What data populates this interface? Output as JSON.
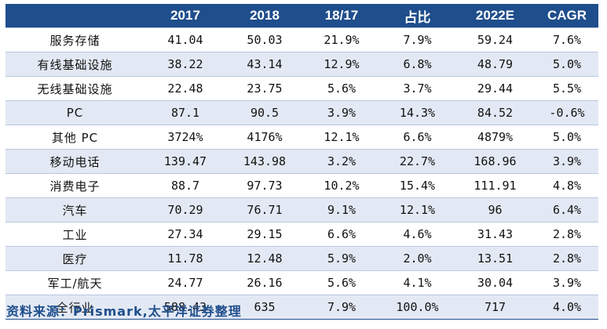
{
  "table": {
    "headers": [
      "",
      "2017",
      "2018",
      "18/17",
      "占比",
      "2022E",
      "CAGR"
    ],
    "rows": [
      [
        "服务存储",
        "41.04",
        "50.03",
        "21.9%",
        "7.9%",
        "59.24",
        "7.6%"
      ],
      [
        "有线基础设施",
        "38.22",
        "43.14",
        "12.9%",
        "6.8%",
        "48.79",
        "5.0%"
      ],
      [
        "无线基础设施",
        "22.48",
        "23.75",
        "5.6%",
        "3.7%",
        "29.44",
        "5.5%"
      ],
      [
        "PC",
        "87.1",
        "90.5",
        "3.9%",
        "14.3%",
        "84.52",
        "-0.6%"
      ],
      [
        "其他 PC",
        "3724%",
        "4176%",
        "12.1%",
        "6.6%",
        "4879%",
        "5.0%"
      ],
      [
        "移动电话",
        "139.47",
        "143.98",
        "3.2%",
        "22.7%",
        "168.96",
        "3.9%"
      ],
      [
        "消费电子",
        "88.7",
        "97.73",
        "10.2%",
        "15.4%",
        "111.91",
        "4.8%"
      ],
      [
        "汽车",
        "70.29",
        "76.71",
        "9.1%",
        "12.1%",
        "96",
        "6.4%"
      ],
      [
        "工业",
        "27.34",
        "29.15",
        "6.6%",
        "4.6%",
        "31.43",
        "2.8%"
      ],
      [
        "医疗",
        "11.78",
        "12.48",
        "5.9%",
        "2.0%",
        "13.51",
        "2.8%"
      ],
      [
        "军工/航天",
        "24.77",
        "26.16",
        "5.6%",
        "4.1%",
        "30.04",
        "3.9%"
      ],
      [
        "全行业",
        "588.43",
        "635",
        "7.9%",
        "100.0%",
        "717",
        "4.0%"
      ]
    ]
  },
  "source": "资料来源：Prismark,太平洋证券整理",
  "colors": {
    "header_bg": "#1f4e8c",
    "stripe_bg": "#e3e9f4",
    "source_text": "#1f4e8c"
  }
}
